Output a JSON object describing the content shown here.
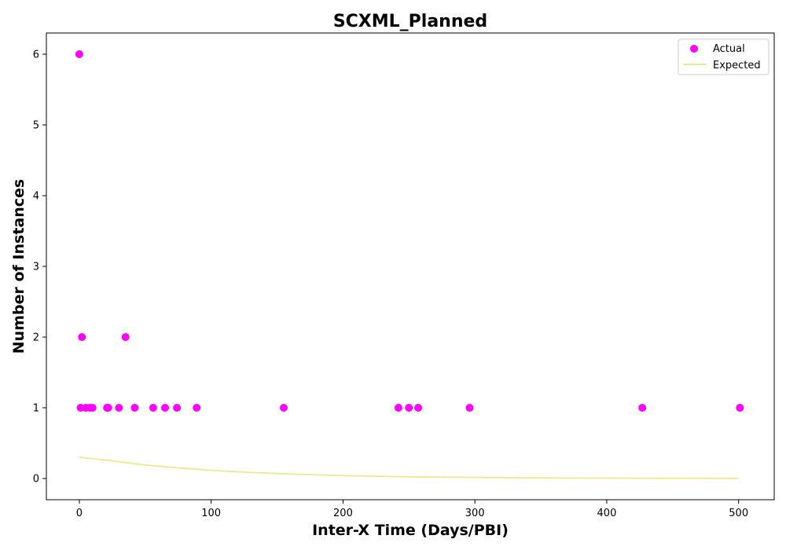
{
  "chart_data": {
    "type": "scatter",
    "title": "SCXML_Planned",
    "xlabel": "Inter-X Time (Days/PBI)",
    "ylabel": "Number of Instances",
    "xlim": [
      -25,
      527
    ],
    "ylim": [
      -0.3,
      6.3
    ],
    "xticks": [
      0,
      100,
      200,
      300,
      400,
      500
    ],
    "yticks": [
      0,
      1,
      2,
      3,
      4,
      5,
      6
    ],
    "grid": false,
    "legend_position": "top-right",
    "series": [
      {
        "name": "Actual",
        "kind": "scatter",
        "color": "#ff00ff",
        "points": [
          {
            "x": 0,
            "y": 6
          },
          {
            "x": 1,
            "y": 1
          },
          {
            "x": 2,
            "y": 2
          },
          {
            "x": 5,
            "y": 1
          },
          {
            "x": 8,
            "y": 1
          },
          {
            "x": 10,
            "y": 1
          },
          {
            "x": 21,
            "y": 1
          },
          {
            "x": 22,
            "y": 1
          },
          {
            "x": 30,
            "y": 1
          },
          {
            "x": 35,
            "y": 2
          },
          {
            "x": 42,
            "y": 1
          },
          {
            "x": 56,
            "y": 1
          },
          {
            "x": 65,
            "y": 1
          },
          {
            "x": 74,
            "y": 1
          },
          {
            "x": 89,
            "y": 1
          },
          {
            "x": 155,
            "y": 1
          },
          {
            "x": 242,
            "y": 1
          },
          {
            "x": 250,
            "y": 1
          },
          {
            "x": 257,
            "y": 1
          },
          {
            "x": 296,
            "y": 1
          },
          {
            "x": 427,
            "y": 1
          },
          {
            "x": 501,
            "y": 1
          }
        ]
      },
      {
        "name": "Expected",
        "kind": "line",
        "color": "#f0e68c",
        "points": [
          {
            "x": 0,
            "y": 0.3
          },
          {
            "x": 25,
            "y": 0.25
          },
          {
            "x": 50,
            "y": 0.19
          },
          {
            "x": 75,
            "y": 0.15
          },
          {
            "x": 100,
            "y": 0.115
          },
          {
            "x": 125,
            "y": 0.09
          },
          {
            "x": 150,
            "y": 0.07
          },
          {
            "x": 175,
            "y": 0.055
          },
          {
            "x": 200,
            "y": 0.04
          },
          {
            "x": 250,
            "y": 0.025
          },
          {
            "x": 300,
            "y": 0.015
          },
          {
            "x": 350,
            "y": 0.008
          },
          {
            "x": 400,
            "y": 0.005
          },
          {
            "x": 450,
            "y": 0.003
          },
          {
            "x": 500,
            "y": 0.002
          }
        ]
      }
    ]
  }
}
